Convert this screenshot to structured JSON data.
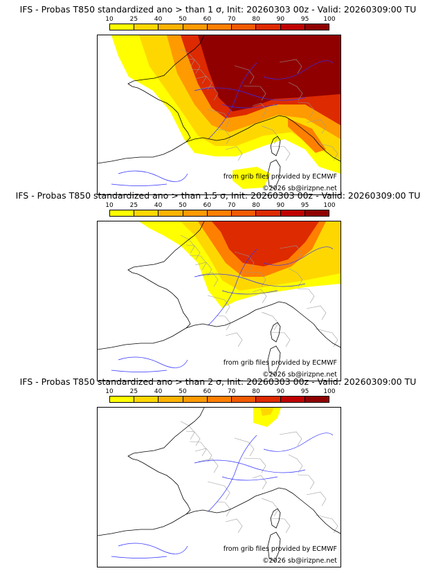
{
  "panels": [
    {
      "title": "IFS - Probas T850  standardized ano > than 1 σ, Init: 20260303 00z - Valid: 20260309:00 TU",
      "level": 1
    },
    {
      "title": "IFS - Probas T850  standardized ano > than 1.5 σ, Init: 20260303 00z - Valid: 20260309:00 TU",
      "level": 2
    },
    {
      "title": "IFS - Probas T850  standardized ano > than 2 σ, Init: 20260303 00z - Valid: 20260309:00 TU",
      "level": 3
    }
  ],
  "colorbar": {
    "ticks": [
      "10",
      "25",
      "40",
      "50",
      "60",
      "70",
      "80",
      "90",
      "95",
      "100"
    ],
    "colors": [
      "#ffff00",
      "#ffd700",
      "#ffb300",
      "#ff9a00",
      "#ff7f00",
      "#f25a00",
      "#dd2a00",
      "#c00000",
      "#900000"
    ]
  },
  "credits": {
    "source": "from grib files provided by ECMWF",
    "copyright": "©2026 sb@irizpne.net"
  }
}
